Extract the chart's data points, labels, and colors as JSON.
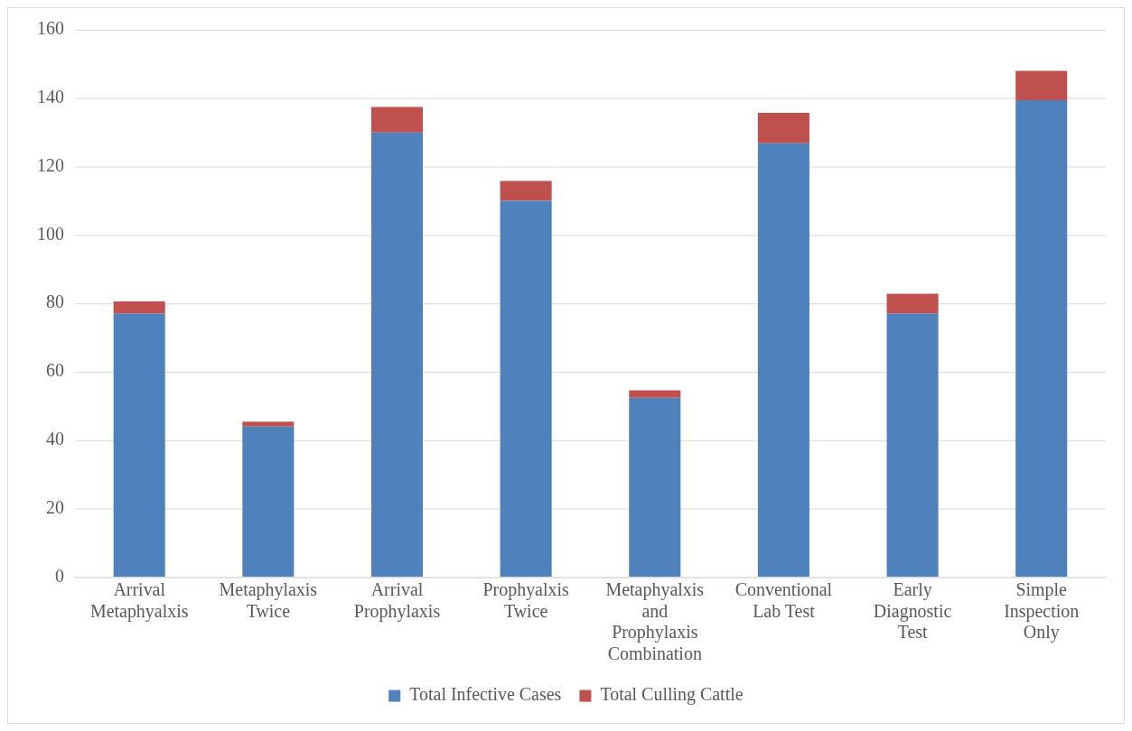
{
  "chart_data": {
    "type": "bar",
    "stacked": true,
    "categories": [
      "Arrival Metaphyalxis",
      "Metaphylaxis Twice",
      "Arrival Prophylaxis",
      "Prophyalxis Twice",
      "Metaphyalxis and Prophylaxis Combination",
      "Conventional Lab Test",
      "Early Diagnostic Test",
      "Simple Inspection Only"
    ],
    "series": [
      {
        "name": "Total Infective Cases",
        "color": "#4f81bd",
        "values": [
          77,
          44,
          130,
          110,
          52.4,
          126.8,
          77,
          139.4
        ]
      },
      {
        "name": "Total Culling Cattle",
        "color": "#c0504d",
        "values": [
          3.6,
          1.4,
          7.4,
          5.8,
          2.2,
          8.9,
          5.8,
          8.6
        ]
      }
    ],
    "ylim": [
      0,
      160
    ],
    "yticks": [
      0,
      20,
      40,
      60,
      80,
      100,
      120,
      140,
      160
    ],
    "grid": "y",
    "legend": "bottom"
  }
}
